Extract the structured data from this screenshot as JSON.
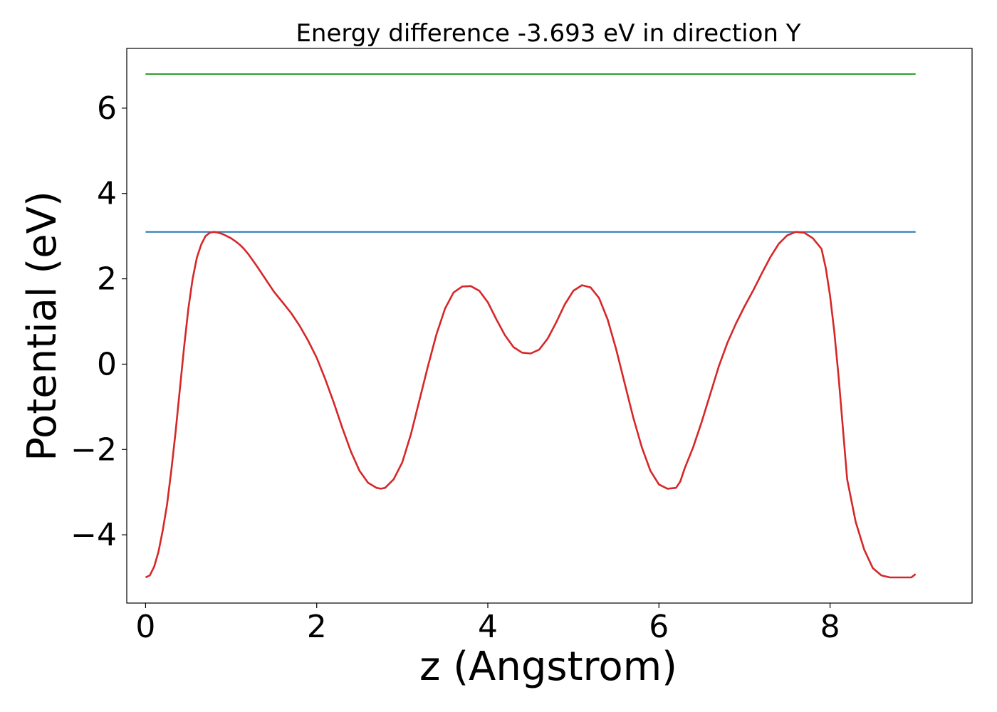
{
  "chart_data": {
    "type": "line",
    "title": "Energy difference -3.693 eV in direction Y",
    "xlabel": "z (Angstrom)",
    "ylabel": "Potential (eV)",
    "xlim": [
      -0.22,
      9.66
    ],
    "ylim": [
      -5.6,
      7.4
    ],
    "xticks": [
      0,
      2,
      4,
      6,
      8
    ],
    "xtick_labels": [
      "0",
      "2",
      "4",
      "6",
      "8"
    ],
    "yticks": [
      -4,
      -2,
      0,
      2,
      4,
      6
    ],
    "ytick_labels": [
      "−4",
      "−2",
      "0",
      "2",
      "4",
      "6"
    ],
    "grid": false,
    "series": [
      {
        "color": "#2ca02c",
        "x": [
          0,
          9
        ],
        "y": [
          6.8,
          6.8
        ]
      },
      {
        "color": "#1f77b4",
        "x": [
          0,
          9
        ],
        "y": [
          3.1,
          3.1
        ]
      },
      {
        "color": "#d62728",
        "x": [
          0,
          0.05,
          0.1,
          0.15,
          0.2,
          0.25,
          0.3,
          0.35,
          0.4,
          0.45,
          0.5,
          0.55,
          0.6,
          0.65,
          0.7,
          0.75,
          0.8,
          0.85,
          0.9,
          0.95,
          1.0,
          1.05,
          1.1,
          1.15,
          1.2,
          1.3,
          1.4,
          1.5,
          1.6,
          1.7,
          1.8,
          1.9,
          2.0,
          2.1,
          2.2,
          2.3,
          2.4,
          2.5,
          2.6,
          2.7,
          2.75,
          2.8,
          2.9,
          3.0,
          3.1,
          3.2,
          3.3,
          3.4,
          3.5,
          3.6,
          3.7,
          3.8,
          3.9,
          4.0,
          4.1,
          4.2,
          4.3,
          4.4,
          4.5,
          4.6,
          4.7,
          4.8,
          4.9,
          5.0,
          5.1,
          5.2,
          5.3,
          5.4,
          5.5,
          5.6,
          5.7,
          5.8,
          5.9,
          6.0,
          6.1,
          6.2,
          6.25,
          6.3,
          6.4,
          6.5,
          6.6,
          6.7,
          6.8,
          6.9,
          7.0,
          7.1,
          7.2,
          7.3,
          7.4,
          7.5,
          7.6,
          7.7,
          7.8,
          7.9,
          7.95,
          8.0,
          8.05,
          8.1,
          8.15,
          8.2,
          8.3,
          8.4,
          8.5,
          8.6,
          8.7,
          8.8,
          8.85,
          8.9,
          8.95,
          9.0
        ],
        "y": [
          -5.0,
          -4.95,
          -4.75,
          -4.4,
          -3.9,
          -3.3,
          -2.5,
          -1.6,
          -0.6,
          0.4,
          1.3,
          2.0,
          2.5,
          2.8,
          3.0,
          3.08,
          3.1,
          3.08,
          3.05,
          3.0,
          2.95,
          2.88,
          2.8,
          2.7,
          2.58,
          2.3,
          2.0,
          1.7,
          1.45,
          1.2,
          0.9,
          0.55,
          0.15,
          -0.35,
          -0.9,
          -1.5,
          -2.05,
          -2.5,
          -2.78,
          -2.9,
          -2.92,
          -2.9,
          -2.7,
          -2.3,
          -1.65,
          -0.85,
          -0.05,
          0.7,
          1.3,
          1.68,
          1.82,
          1.83,
          1.72,
          1.45,
          1.05,
          0.68,
          0.4,
          0.27,
          0.25,
          0.34,
          0.6,
          0.98,
          1.4,
          1.72,
          1.85,
          1.8,
          1.55,
          1.05,
          0.35,
          -0.45,
          -1.25,
          -1.95,
          -2.5,
          -2.82,
          -2.92,
          -2.9,
          -2.75,
          -2.45,
          -1.95,
          -1.35,
          -0.7,
          -0.05,
          0.5,
          0.95,
          1.35,
          1.72,
          2.12,
          2.5,
          2.82,
          3.02,
          3.1,
          3.08,
          2.95,
          2.7,
          2.25,
          1.6,
          0.75,
          -0.3,
          -1.5,
          -2.7,
          -3.7,
          -4.35,
          -4.78,
          -4.95,
          -5.0,
          -5.0,
          -5.0,
          -5.0,
          -5.0,
          -4.92
        ]
      }
    ]
  }
}
